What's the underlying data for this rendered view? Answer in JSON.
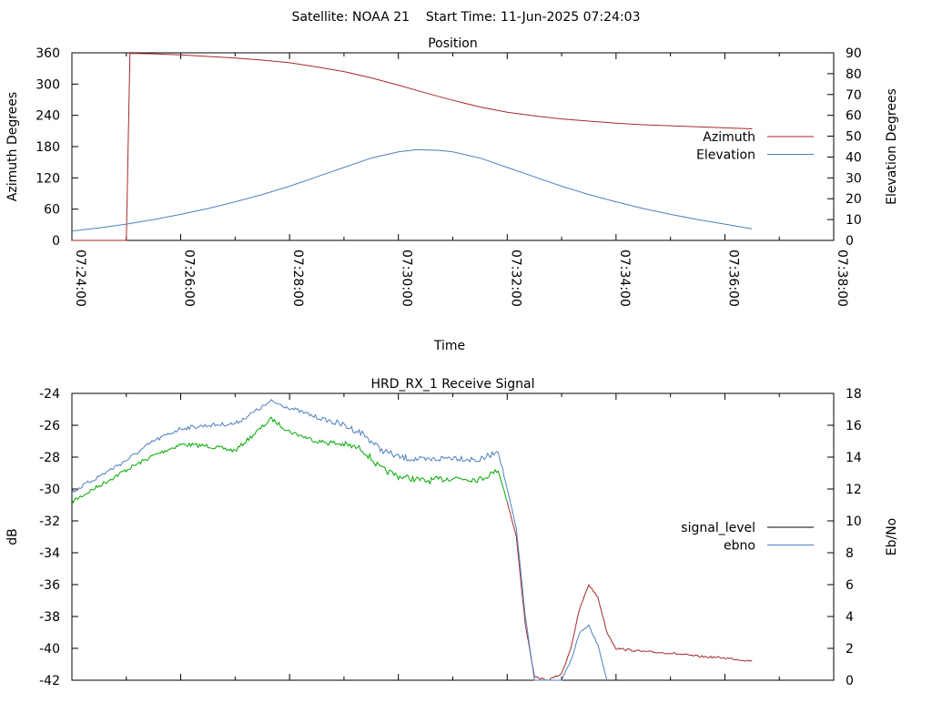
{
  "header": {
    "title": "Satellite: NOAA 21    Start Time: 11-Jun-2025 07:24:03"
  },
  "chart_data": [
    {
      "type": "line",
      "title": "Position",
      "xlabel": "Time",
      "ylabel": "Azimuth Degrees",
      "y2label": "Elevation Degrees",
      "xlim": [
        "07:24:00",
        "07:38:00"
      ],
      "xticks": [
        "07:24:00",
        "07:26:00",
        "07:28:00",
        "07:30:00",
        "07:32:00",
        "07:34:00",
        "07:36:00",
        "07:38:00"
      ],
      "ylim": [
        0,
        360
      ],
      "yticks": [
        0,
        60,
        120,
        180,
        240,
        300,
        360
      ],
      "y2lim": [
        0,
        90
      ],
      "y2ticks": [
        0,
        10,
        20,
        30,
        40,
        50,
        60,
        70,
        80,
        90
      ],
      "legend_position": "right",
      "series": [
        {
          "name": "Azimuth",
          "axis": "y",
          "color": "#a52a2a",
          "points": [
            [
              "07:24:00",
              0
            ],
            [
              "07:24:40",
              0
            ],
            [
              "07:25:00",
              0
            ],
            [
              "07:25:02",
              180
            ],
            [
              "07:25:04",
              359
            ],
            [
              "07:25:30",
              358
            ],
            [
              "07:26:00",
              356
            ],
            [
              "07:26:30",
              353
            ],
            [
              "07:27:00",
              350
            ],
            [
              "07:27:30",
              346
            ],
            [
              "07:28:00",
              341
            ],
            [
              "07:28:30",
              333
            ],
            [
              "07:29:00",
              324
            ],
            [
              "07:29:30",
              312
            ],
            [
              "07:30:00",
              298
            ],
            [
              "07:30:30",
              283
            ],
            [
              "07:31:00",
              269
            ],
            [
              "07:31:30",
              256
            ],
            [
              "07:32:00",
              246
            ],
            [
              "07:32:30",
              239
            ],
            [
              "07:33:00",
              233
            ],
            [
              "07:33:30",
              229
            ],
            [
              "07:34:00",
              225
            ],
            [
              "07:34:30",
              222
            ],
            [
              "07:35:00",
              220
            ],
            [
              "07:35:30",
              218
            ],
            [
              "07:36:00",
              216
            ],
            [
              "07:36:30",
              214
            ],
            [
              "07:36:30",
              214
            ]
          ]
        },
        {
          "name": "Elevation",
          "axis": "y2",
          "color": "#4f7fbf",
          "points": [
            [
              "07:24:00",
              4.5
            ],
            [
              "07:24:30",
              6
            ],
            [
              "07:25:00",
              7.8
            ],
            [
              "07:25:30",
              10
            ],
            [
              "07:26:00",
              12.5
            ],
            [
              "07:26:30",
              15.3
            ],
            [
              "07:27:00",
              18.5
            ],
            [
              "07:27:30",
              22
            ],
            [
              "07:28:00",
              26
            ],
            [
              "07:28:30",
              30.5
            ],
            [
              "07:29:00",
              35
            ],
            [
              "07:29:30",
              39.5
            ],
            [
              "07:30:00",
              42.5
            ],
            [
              "07:30:20",
              43.5
            ],
            [
              "07:30:45",
              43.2
            ],
            [
              "07:31:00",
              42.5
            ],
            [
              "07:31:30",
              39.5
            ],
            [
              "07:32:00",
              35
            ],
            [
              "07:32:30",
              30.5
            ],
            [
              "07:33:00",
              26
            ],
            [
              "07:33:30",
              22
            ],
            [
              "07:34:00",
              18.5
            ],
            [
              "07:34:30",
              15.3
            ],
            [
              "07:35:00",
              12.5
            ],
            [
              "07:35:30",
              10
            ],
            [
              "07:36:00",
              7.8
            ],
            [
              "07:36:30",
              5.5
            ],
            [
              "07:36:30",
              5.5
            ]
          ]
        }
      ]
    },
    {
      "type": "line",
      "title": "HRD_RX_1 Receive Signal",
      "xlabel": "",
      "ylabel": "dB",
      "y2label": "Eb/No",
      "xlim": [
        "07:24:00",
        "07:38:00"
      ],
      "ylim": [
        -42,
        -24
      ],
      "yticks": [
        -42,
        -40,
        -38,
        -36,
        -34,
        -32,
        -30,
        -28,
        -26,
        -24
      ],
      "y2lim": [
        0,
        18
      ],
      "y2ticks": [
        0,
        2,
        4,
        6,
        8,
        10,
        12,
        14,
        16,
        18
      ],
      "legend_position": "right",
      "series": [
        {
          "name": "signal_level",
          "axis": "y",
          "color": "#00aa00",
          "color_late": "#a52a2a",
          "legend_color": "#000000",
          "points": [
            [
              "07:24:00",
              -30.8
            ],
            [
              "07:24:30",
              -29.8
            ],
            [
              "07:25:00",
              -28.8
            ],
            [
              "07:25:30",
              -27.9
            ],
            [
              "07:26:00",
              -27.2
            ],
            [
              "07:26:30",
              -27.3
            ],
            [
              "07:27:00",
              -27.6
            ],
            [
              "07:27:20",
              -26.6
            ],
            [
              "07:27:40",
              -25.6
            ],
            [
              "07:28:00",
              -26.4
            ],
            [
              "07:28:30",
              -27.0
            ],
            [
              "07:29:00",
              -27.2
            ],
            [
              "07:29:20",
              -27.5
            ],
            [
              "07:29:40",
              -28.7
            ],
            [
              "07:30:00",
              -29.2
            ],
            [
              "07:30:30",
              -29.5
            ],
            [
              "07:31:00",
              -29.3
            ],
            [
              "07:31:30",
              -29.4
            ],
            [
              "07:31:50",
              -28.8
            ],
            [
              "07:32:00",
              -30.8
            ],
            [
              "07:32:10",
              -33.0
            ],
            [
              "07:32:20",
              -38.5
            ],
            [
              "07:32:30",
              -41.8
            ],
            [
              "07:32:45",
              -42.0
            ],
            [
              "07:33:00",
              -41.6
            ],
            [
              "07:33:10",
              -40.0
            ],
            [
              "07:33:20",
              -37.5
            ],
            [
              "07:33:30",
              -36.0
            ],
            [
              "07:33:40",
              -36.8
            ],
            [
              "07:33:50",
              -39.0
            ],
            [
              "07:34:00",
              -40.0
            ],
            [
              "07:34:30",
              -40.2
            ],
            [
              "07:35:00",
              -40.3
            ],
            [
              "07:35:30",
              -40.5
            ],
            [
              "07:36:00",
              -40.6
            ],
            [
              "07:36:30",
              -40.8
            ]
          ]
        },
        {
          "name": "ebno",
          "axis": "y2",
          "color": "#4f7fbf",
          "points": [
            [
              "07:24:00",
              11.8
            ],
            [
              "07:24:30",
              12.8
            ],
            [
              "07:25:00",
              13.8
            ],
            [
              "07:25:30",
              15.0
            ],
            [
              "07:26:00",
              15.8
            ],
            [
              "07:26:30",
              16.0
            ],
            [
              "07:27:00",
              16.1
            ],
            [
              "07:27:20",
              16.8
            ],
            [
              "07:27:40",
              17.5
            ],
            [
              "07:28:00",
              17.1
            ],
            [
              "07:28:30",
              16.5
            ],
            [
              "07:29:00",
              16.0
            ],
            [
              "07:29:20",
              15.5
            ],
            [
              "07:29:40",
              14.5
            ],
            [
              "07:30:00",
              14.0
            ],
            [
              "07:30:30",
              13.8
            ],
            [
              "07:31:00",
              14.0
            ],
            [
              "07:31:30",
              13.8
            ],
            [
              "07:31:50",
              14.4
            ],
            [
              "07:32:00",
              12.0
            ],
            [
              "07:32:10",
              9.5
            ],
            [
              "07:32:20",
              4.0
            ],
            [
              "07:32:30",
              0
            ],
            [
              "07:33:00",
              0
            ],
            [
              "07:33:10",
              1.2
            ],
            [
              "07:33:20",
              3.0
            ],
            [
              "07:33:30",
              3.4
            ],
            [
              "07:33:40",
              2.2
            ],
            [
              "07:33:50",
              0
            ]
          ]
        }
      ]
    }
  ]
}
